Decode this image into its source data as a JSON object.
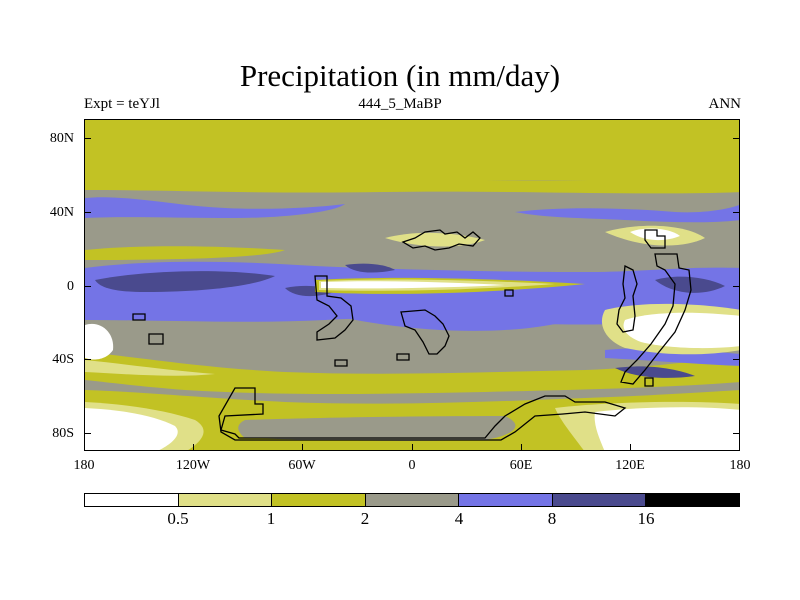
{
  "title": "Precipitation (in mm/day)",
  "subtitle_left": "Expt = teYJl",
  "subtitle_center": "444_5_MaBP",
  "subtitle_right": "ANN",
  "y_axis_labels": [
    "80N",
    "40N",
    "0",
    "40S",
    "80S"
  ],
  "x_axis_labels": [
    "180",
    "120W",
    "60W",
    "0",
    "60E",
    "120E",
    "180"
  ],
  "colorbar": {
    "levels": [
      "0.5",
      "1",
      "2",
      "4",
      "8",
      "16"
    ],
    "colors": [
      "#ffffff",
      "#e0e088",
      "#c2c224",
      "#9a9a8a",
      "#7474e6",
      "#4a4a8e",
      "#000000"
    ]
  },
  "chart_data": {
    "type": "heatmap",
    "title": "Precipitation (in mm/day)",
    "units": "mm/day",
    "experiment": "teYJl",
    "period": "444_5_MaBP",
    "season": "ANN",
    "x_range": [
      -180,
      180
    ],
    "y_range": [
      -90,
      90
    ],
    "contour_levels": [
      0.5,
      1,
      2,
      4,
      8,
      16
    ],
    "x_ticks": [
      "180",
      "120W",
      "60W",
      "0",
      "60E",
      "120E",
      "180"
    ],
    "y_ticks": [
      "80N",
      "40N",
      "0",
      "40S",
      "80S"
    ]
  }
}
